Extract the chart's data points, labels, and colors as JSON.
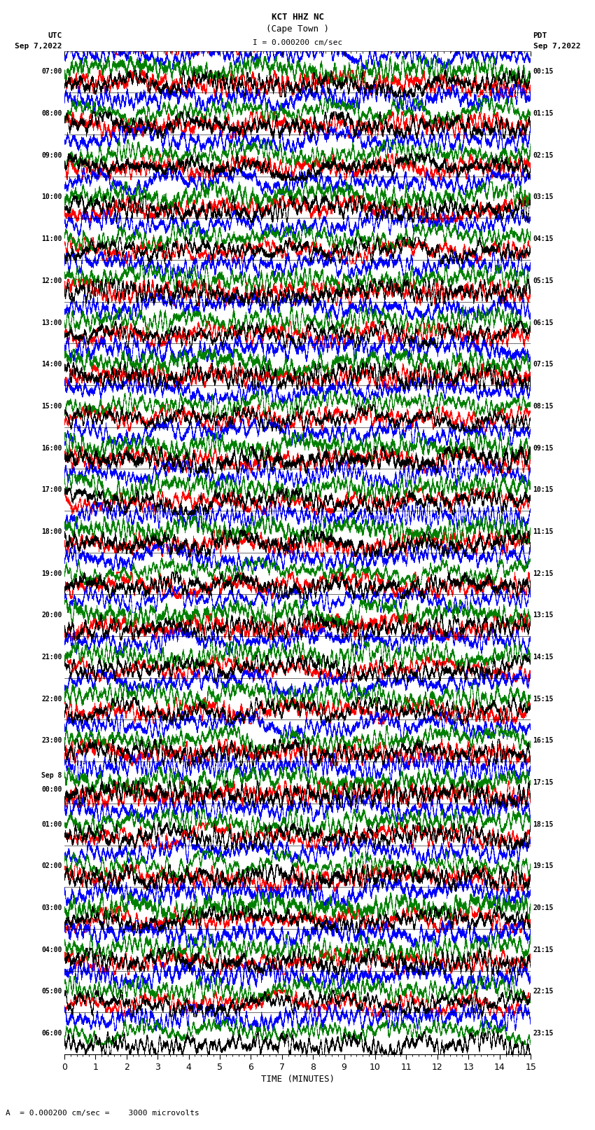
{
  "title_line1": "KCT HHZ NC",
  "title_line2": "(Cape Town )",
  "title_scale": "I = 0.000200 cm/sec",
  "left_header_line1": "UTC",
  "left_header_line2": "Sep 7,2022",
  "right_header_line1": "PDT",
  "right_header_line2": "Sep 7,2022",
  "left_times": [
    "07:00",
    "08:00",
    "09:00",
    "10:00",
    "11:00",
    "12:00",
    "13:00",
    "14:00",
    "15:00",
    "16:00",
    "17:00",
    "18:00",
    "19:00",
    "20:00",
    "21:00",
    "22:00",
    "23:00",
    "Sep 8\n00:00",
    "01:00",
    "02:00",
    "03:00",
    "04:00",
    "05:00",
    "06:00"
  ],
  "right_times": [
    "00:15",
    "01:15",
    "02:15",
    "03:15",
    "04:15",
    "05:15",
    "06:15",
    "07:15",
    "08:15",
    "09:15",
    "10:15",
    "11:15",
    "12:15",
    "13:15",
    "14:15",
    "15:15",
    "16:15",
    "17:15",
    "18:15",
    "19:15",
    "20:15",
    "21:15",
    "22:15",
    "23:15"
  ],
  "xlabel": "TIME (MINUTES)",
  "x_major_ticks": [
    0,
    1,
    2,
    3,
    4,
    5,
    6,
    7,
    8,
    9,
    10,
    11,
    12,
    13,
    14,
    15
  ],
  "bottom_note": "A  = 0.000200 cm/sec =    3000 microvolts",
  "num_traces": 24,
  "minutes_per_trace": 15,
  "sub_traces_per_band": 4,
  "colors": [
    "red",
    "blue",
    "green",
    "black"
  ],
  "bg_color": "#ffffff",
  "sub_offsets": [
    0.72,
    0.38,
    0.05,
    -0.28
  ],
  "sub_amp": 0.32,
  "lw": 0.4
}
